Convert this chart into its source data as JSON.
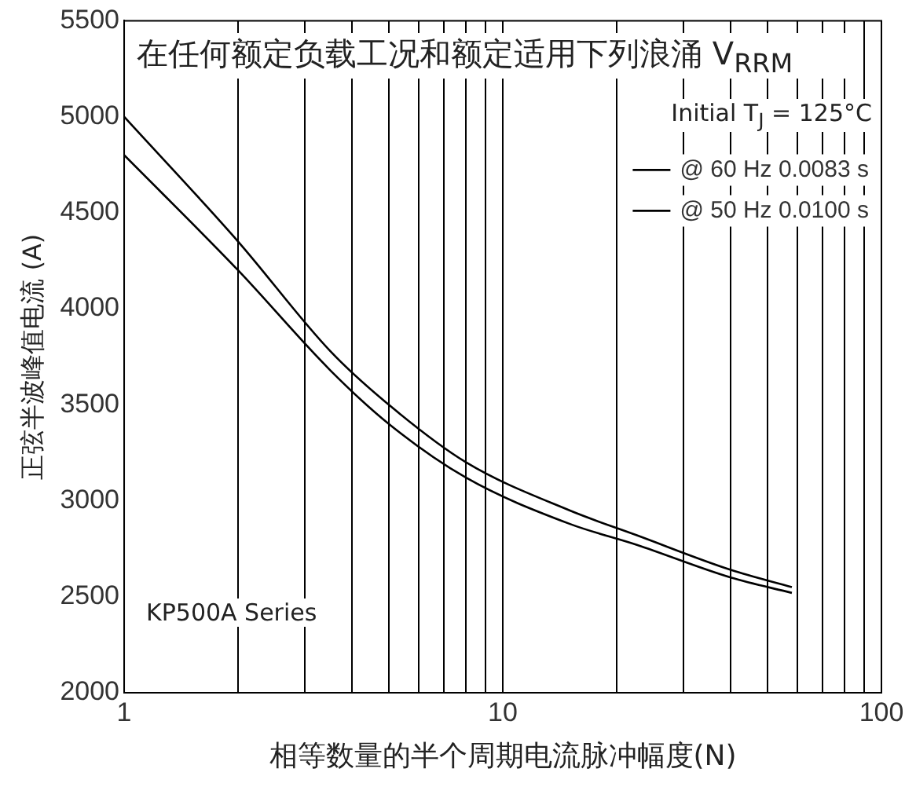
{
  "chart_data": {
    "type": "line",
    "xlabel": "相等数量的半个周期电流脉冲幅度(N)",
    "ylabel": "正弦半波峰值电流 (A)",
    "x": [
      1,
      2,
      3.5,
      5,
      8,
      15,
      22.6,
      40,
      58
    ],
    "series": [
      {
        "name": "@ 60 Hz 0.0083 s",
        "color": "#000000",
        "values": [
          5000,
          4350,
          3780,
          3500,
          3200,
          2950,
          2820,
          2640,
          2550
        ]
      },
      {
        "name": "@ 50 Hz 0.0100 s",
        "color": "#000000",
        "values": [
          4800,
          4200,
          3680,
          3400,
          3120,
          2880,
          2770,
          2600,
          2520
        ]
      }
    ],
    "log": "x",
    "xlim": [
      1,
      100
    ],
    "xticks": [
      1,
      {
        "value": 2,
        "label": null
      },
      {
        "value": 3,
        "label": null
      },
      {
        "value": 4,
        "label": null
      },
      {
        "value": 5,
        "label": null
      },
      {
        "value": 6,
        "label": null
      },
      {
        "value": 7,
        "label": null
      },
      {
        "value": 8,
        "label": null
      },
      {
        "value": 9,
        "label": null
      },
      10,
      {
        "value": 20,
        "label": null
      },
      {
        "value": 30,
        "label": null
      },
      {
        "value": 40,
        "label": null
      },
      {
        "value": 50,
        "label": null
      },
      {
        "value": 60,
        "label": null
      },
      {
        "value": 70,
        "label": null
      },
      {
        "value": 80,
        "label": null
      },
      {
        "value": 90,
        "label": null
      },
      100
    ],
    "ylim": [
      2000,
      5500
    ],
    "yticks": [
      2000,
      2500,
      3000,
      3500,
      4000,
      4500,
      5000,
      5500
    ],
    "grid": "x",
    "legend": "top right",
    "marker": "none",
    "line_style": "solid",
    "annotations": [
      "在任何额定负载工况和额定适用下列浪涌 V$_{RRM}$",
      "Initial T$_{J}$ = 125°C",
      "KP500A Series"
    ]
  }
}
